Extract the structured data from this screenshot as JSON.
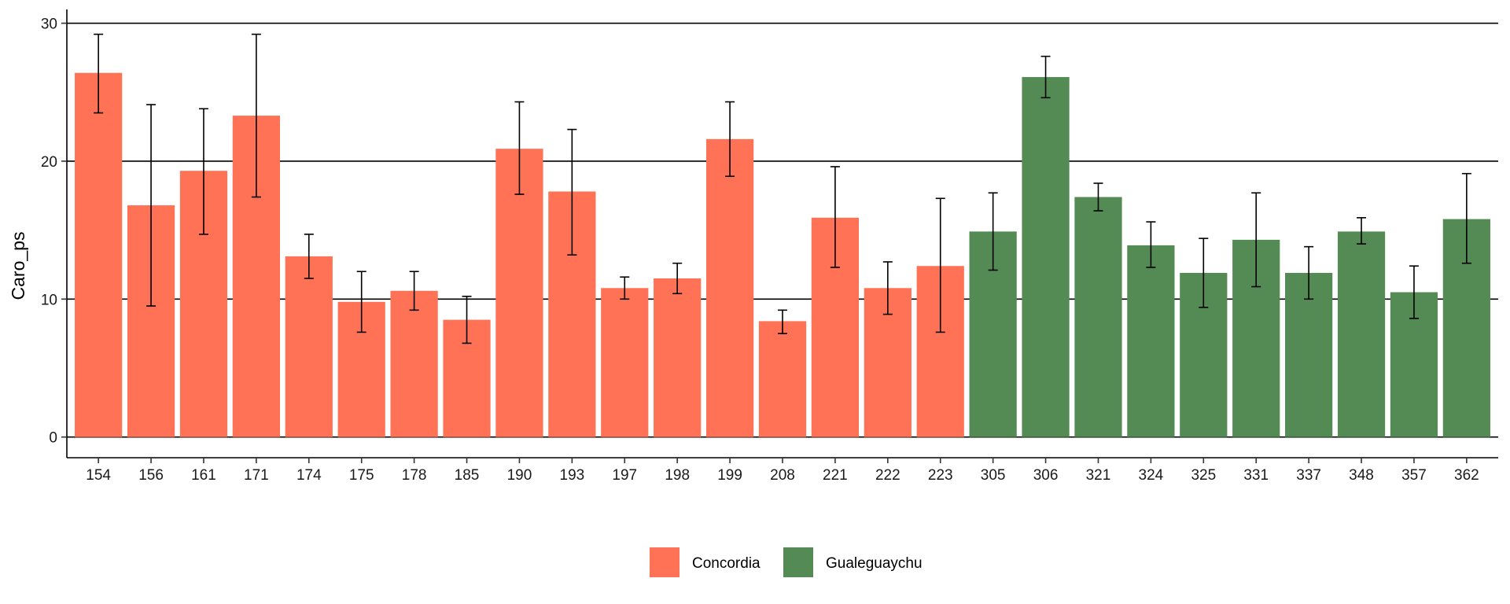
{
  "chart_data": {
    "type": "bar",
    "title": "",
    "xlabel": "",
    "ylabel": "Caro_ps",
    "ylim": [
      -1.5,
      31
    ],
    "yticks": [
      0,
      10,
      20,
      30
    ],
    "grid": "horizontal major lines",
    "legend_position": "bottom",
    "categories": [
      "154",
      "156",
      "161",
      "171",
      "174",
      "175",
      "178",
      "185",
      "190",
      "193",
      "197",
      "198",
      "199",
      "208",
      "221",
      "222",
      "223",
      "305",
      "306",
      "321",
      "324",
      "325",
      "331",
      "337",
      "348",
      "357",
      "362"
    ],
    "values": [
      26.4,
      16.8,
      19.3,
      23.3,
      13.1,
      9.8,
      10.6,
      8.5,
      20.9,
      17.8,
      10.8,
      11.5,
      21.6,
      8.4,
      15.9,
      10.8,
      12.4,
      14.9,
      26.1,
      17.4,
      13.9,
      11.9,
      14.3,
      11.9,
      14.9,
      10.5,
      15.8
    ],
    "error_low": [
      23.5,
      9.5,
      14.7,
      17.4,
      11.5,
      7.6,
      9.2,
      6.8,
      17.6,
      13.2,
      10.0,
      10.4,
      18.9,
      7.5,
      12.3,
      8.9,
      7.6,
      12.1,
      24.6,
      16.4,
      12.3,
      9.4,
      10.9,
      10.0,
      14.0,
      8.6,
      12.6
    ],
    "error_high": [
      29.2,
      24.1,
      23.8,
      29.2,
      14.7,
      12.0,
      12.0,
      10.2,
      24.3,
      22.3,
      11.6,
      12.6,
      24.3,
      9.2,
      19.6,
      12.7,
      17.3,
      17.7,
      27.6,
      18.4,
      15.6,
      14.4,
      17.7,
      13.8,
      15.9,
      12.4,
      19.1
    ],
    "groups": [
      "Concordia",
      "Concordia",
      "Concordia",
      "Concordia",
      "Concordia",
      "Concordia",
      "Concordia",
      "Concordia",
      "Concordia",
      "Concordia",
      "Concordia",
      "Concordia",
      "Concordia",
      "Concordia",
      "Concordia",
      "Concordia",
      "Concordia",
      "Gualeguaychu",
      "Gualeguaychu",
      "Gualeguaychu",
      "Gualeguaychu",
      "Gualeguaychu",
      "Gualeguaychu",
      "Gualeguaychu",
      "Gualeguaychu",
      "Gualeguaychu",
      "Gualeguaychu"
    ],
    "legend": [
      {
        "name": "Concordia",
        "color": "#ff7256"
      },
      {
        "name": "Gualeguaychu",
        "color": "#548b54"
      }
    ]
  }
}
